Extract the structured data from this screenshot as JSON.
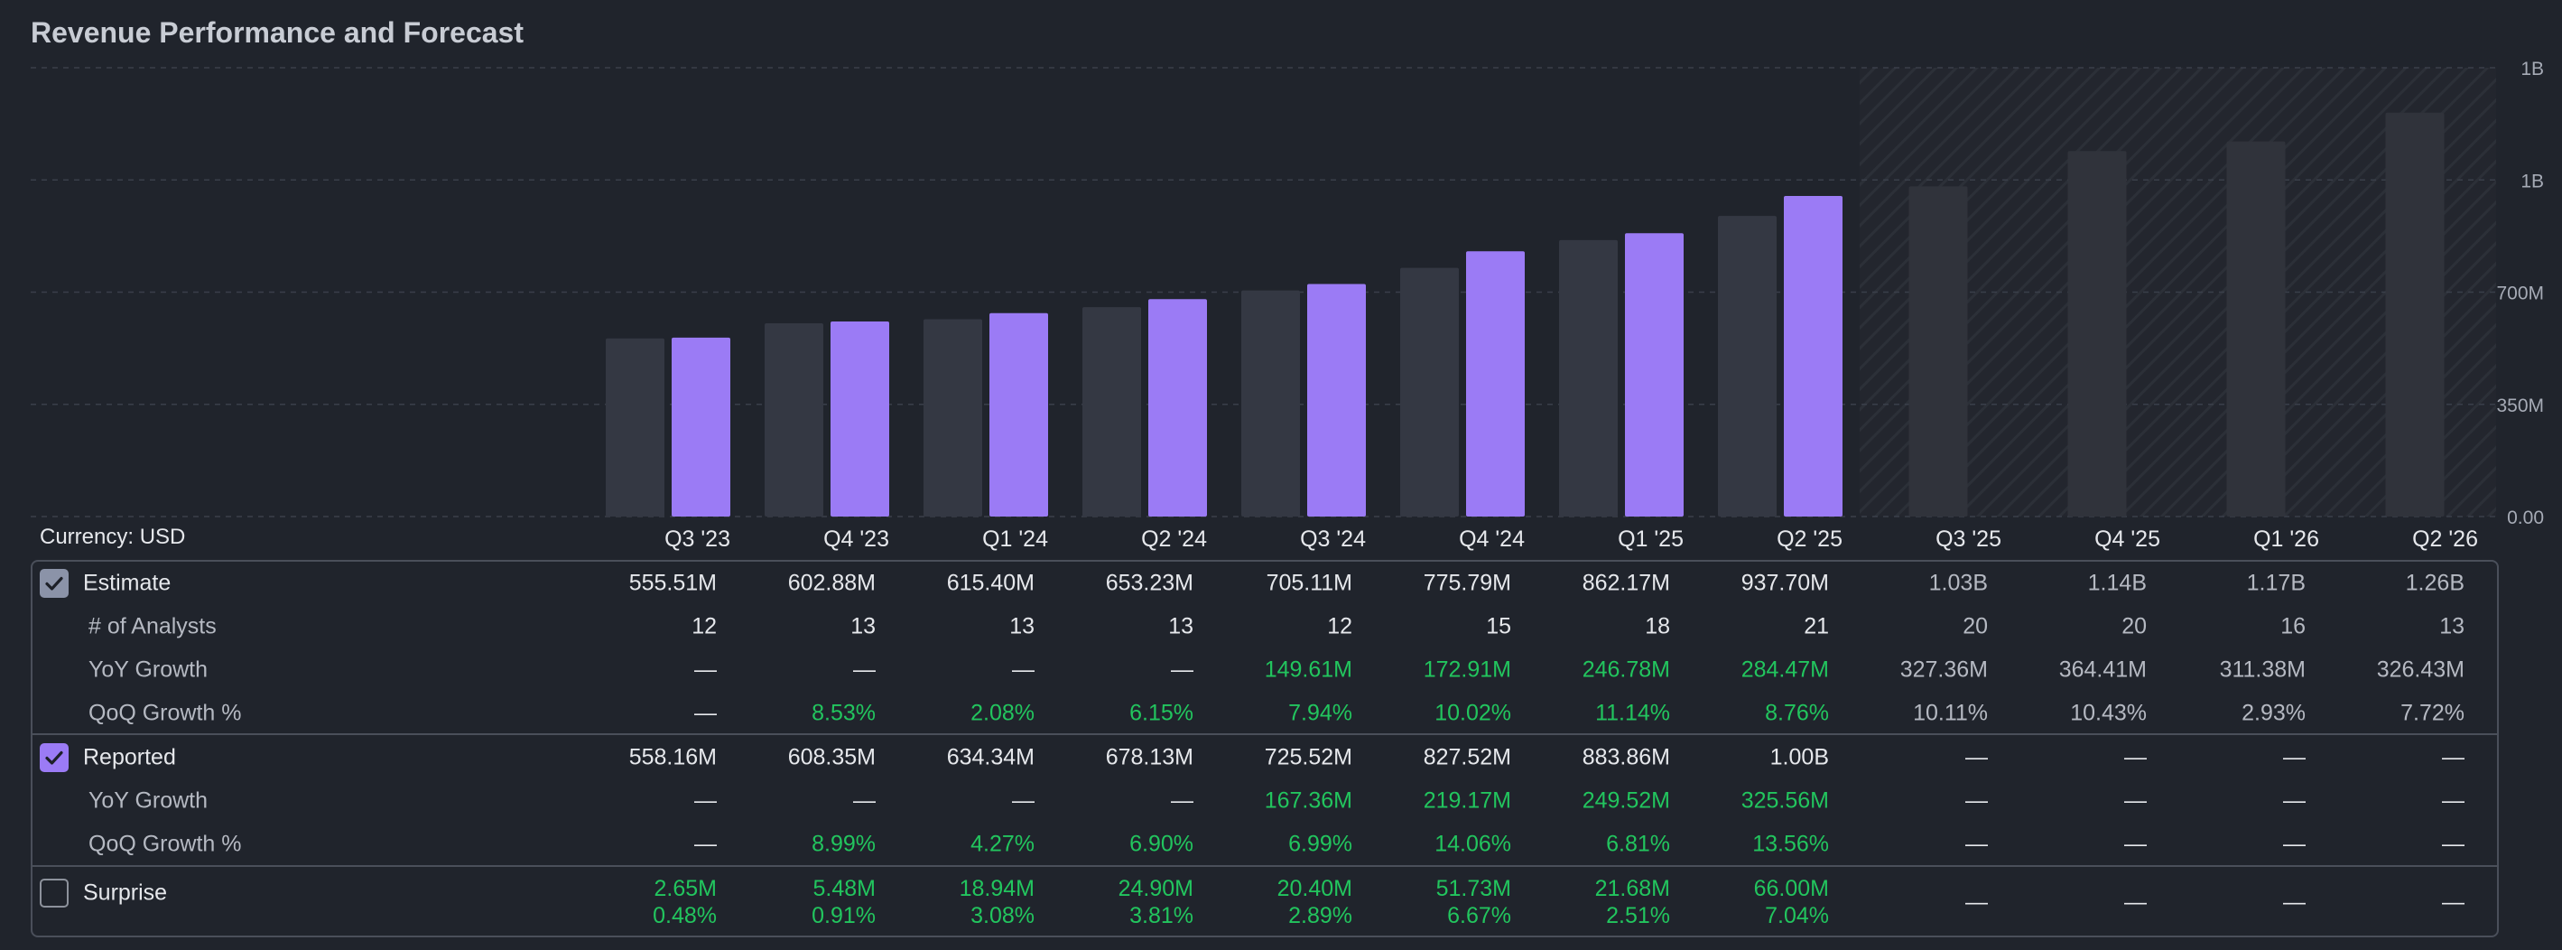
{
  "title": "Revenue Performance and Forecast",
  "currency_label": "Currency: USD",
  "colors": {
    "background": "#20242c",
    "estimate_bar": "#343843",
    "reported_bar": "#9b7bf5",
    "forecast_bar": "#30333b",
    "positive": "#22c55e",
    "text": "#e6e8ec",
    "muted": "#b5b9c2"
  },
  "chart_data": {
    "type": "bar",
    "categories": [
      "Q3 '23",
      "Q4 '23",
      "Q1 '24",
      "Q2 '24",
      "Q3 '24",
      "Q4 '24",
      "Q1 '25",
      "Q2 '25",
      "Q3 '25",
      "Q4 '25",
      "Q1 '26",
      "Q2 '26"
    ],
    "series": [
      {
        "name": "Estimate",
        "values": [
          555.51,
          602.88,
          615.4,
          653.23,
          705.11,
          775.79,
          862.17,
          937.7,
          1030,
          1140,
          1170,
          1260
        ]
      },
      {
        "name": "Reported",
        "values": [
          558.16,
          608.35,
          634.34,
          678.13,
          725.52,
          827.52,
          883.86,
          1000,
          null,
          null,
          null,
          null
        ]
      }
    ],
    "unit": "M",
    "yticks": [
      "0.00",
      "350M",
      "700M",
      "1B",
      "1B"
    ],
    "ylim": [
      0,
      1400
    ],
    "forecast_from_index": 8,
    "grid": true
  },
  "table": {
    "columns": [
      "Q3 '23",
      "Q4 '23",
      "Q1 '24",
      "Q2 '24",
      "Q3 '24",
      "Q4 '24",
      "Q1 '25",
      "Q2 '25",
      "Q3 '25",
      "Q4 '25",
      "Q1 '26",
      "Q2 '26"
    ],
    "estimate": {
      "label": "Estimate",
      "values": [
        "555.51M",
        "602.88M",
        "615.40M",
        "653.23M",
        "705.11M",
        "775.79M",
        "862.17M",
        "937.70M",
        "1.03B",
        "1.14B",
        "1.17B",
        "1.26B"
      ]
    },
    "analysts": {
      "label": "# of Analysts",
      "values": [
        "12",
        "13",
        "13",
        "13",
        "12",
        "15",
        "18",
        "21",
        "20",
        "20",
        "16",
        "13"
      ]
    },
    "estimate_yoy": {
      "label": "YoY Growth",
      "values": [
        "—",
        "—",
        "—",
        "—",
        "149.61M",
        "172.91M",
        "246.78M",
        "284.47M",
        "327.36M",
        "364.41M",
        "311.38M",
        "326.43M"
      ]
    },
    "estimate_qoq": {
      "label": "QoQ Growth %",
      "values": [
        "—",
        "8.53%",
        "2.08%",
        "6.15%",
        "7.94%",
        "10.02%",
        "11.14%",
        "8.76%",
        "10.11%",
        "10.43%",
        "2.93%",
        "7.72%"
      ]
    },
    "reported": {
      "label": "Reported",
      "values": [
        "558.16M",
        "608.35M",
        "634.34M",
        "678.13M",
        "725.52M",
        "827.52M",
        "883.86M",
        "1.00B",
        "—",
        "—",
        "—",
        "—"
      ]
    },
    "reported_yoy": {
      "label": "YoY Growth",
      "values": [
        "—",
        "—",
        "—",
        "—",
        "167.36M",
        "219.17M",
        "249.52M",
        "325.56M",
        "—",
        "—",
        "—",
        "—"
      ]
    },
    "reported_qoq": {
      "label": "QoQ Growth %",
      "values": [
        "—",
        "8.99%",
        "4.27%",
        "6.90%",
        "6.99%",
        "14.06%",
        "6.81%",
        "13.56%",
        "—",
        "—",
        "—",
        "—"
      ]
    },
    "surprise": {
      "label": "Surprise",
      "amounts": [
        "2.65M",
        "5.48M",
        "18.94M",
        "24.90M",
        "20.40M",
        "51.73M",
        "21.68M",
        "66.00M",
        "—",
        "—",
        "—",
        "—"
      ],
      "percents": [
        "0.48%",
        "0.91%",
        "3.08%",
        "3.81%",
        "2.89%",
        "6.67%",
        "2.51%",
        "7.04%",
        "",
        "",
        "",
        ""
      ]
    }
  }
}
